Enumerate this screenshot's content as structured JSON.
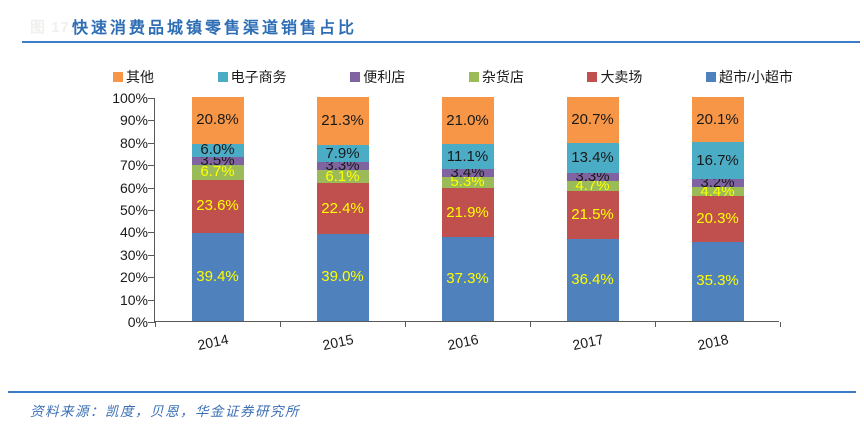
{
  "figure": {
    "caption_prefix": "图 17:",
    "title": "快速消费品城镇零售渠道销售占比",
    "source": "资料来源：凯度，贝恩，华金证券研究所"
  },
  "chart_data": {
    "type": "bar",
    "stacked": true,
    "percent_stacked": true,
    "title": "快速消费品城镇零售渠道销售占比",
    "categories": [
      "2014",
      "2015",
      "2016",
      "2017",
      "2018"
    ],
    "series": [
      {
        "name": "超市/小超市",
        "color": "#4F81BD",
        "label_color": "#FFFF00",
        "values": [
          39.4,
          39.0,
          37.3,
          36.4,
          35.3
        ]
      },
      {
        "name": "大卖场",
        "color": "#C0504D",
        "label_color": "#FFFF00",
        "values": [
          23.6,
          22.4,
          21.9,
          21.5,
          20.3
        ]
      },
      {
        "name": "杂货店",
        "color": "#9BBB59",
        "label_color": "#FFFF00",
        "values": [
          6.7,
          6.1,
          5.3,
          4.7,
          4.4
        ]
      },
      {
        "name": "便利店",
        "color": "#8064A2",
        "label_color": "#1A1A1A",
        "values": [
          3.5,
          3.3,
          3.4,
          3.3,
          3.2
        ]
      },
      {
        "name": "电子商务",
        "color": "#4BACC6",
        "label_color": "#1A1A1A",
        "values": [
          6.0,
          7.9,
          11.1,
          13.4,
          16.7
        ]
      },
      {
        "name": "其他",
        "color": "#F79646",
        "label_color": "#1A1A1A",
        "values": [
          20.8,
          21.3,
          21.0,
          20.7,
          20.1
        ]
      }
    ],
    "legend_order_note": "legend shown top row, reverse of stack order",
    "label_suffix": "%",
    "xlabel": "",
    "ylabel": "",
    "y_axis": {
      "min": 0,
      "max": 100,
      "step": 10,
      "tick_suffix": "%"
    },
    "grid": false,
    "legend_position": "top"
  }
}
